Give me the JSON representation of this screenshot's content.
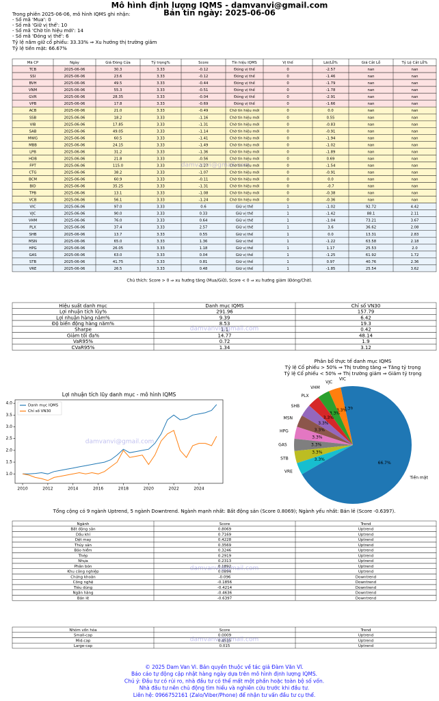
{
  "header": {
    "title": "Mô hình định lượng IQMS - damvanvi@gmail.com",
    "subtitle": "Bản tin ngày: 2025-06-06"
  },
  "summary": [
    "Trong phiên 2025-06-06, mô hình IQMS ghi nhận:",
    "- Số mã 'Mua': 0",
    "- Số mã 'Giữ vị thế': 10",
    "- Số mã 'Chờ tín hiệu mới': 14",
    "- Số mã 'Đóng vị thế': 6",
    "Tỷ lệ nắm giữ cổ phiếu: 33.33%  ⇒ Xu hướng thị trường giảm",
    "Tỷ lệ tiền mặt: 66.67%"
  ],
  "watermark": "damvanvi@gmail.com",
  "signals": {
    "header": [
      "Mã CP",
      "Ngày",
      "Giá Đóng Cửa",
      "Tỷ trọng%",
      "Score",
      "Tín hiệu IQMS",
      "Vị thế",
      "Lãi/Lỗ%",
      "Giá Cắt Lỗ",
      "Tỷ Lệ Cắt Lỗ%"
    ],
    "rows": [
      [
        "TCB",
        "2025-06-06",
        "30.3",
        "3.33",
        "-0.12",
        "Đóng vị thế",
        "0",
        "-2.57",
        "nan",
        "nan"
      ],
      [
        "SSI",
        "2025-06-06",
        "23.6",
        "3.33",
        "-0.12",
        "Đóng vị thế",
        "0",
        "-1.46",
        "nan",
        "nan"
      ],
      [
        "BVH",
        "2025-06-06",
        "49.5",
        "3.33",
        "-0.44",
        "Đóng vị thế",
        "0",
        "-1.79",
        "nan",
        "nan"
      ],
      [
        "VNM",
        "2025-06-06",
        "55.3",
        "3.33",
        "-0.51",
        "Đóng vị thế",
        "0",
        "-1.78",
        "nan",
        "nan"
      ],
      [
        "GVR",
        "2025-06-06",
        "28.35",
        "3.33",
        "-0.04",
        "Đóng vị thế",
        "0",
        "-2.91",
        "nan",
        "nan"
      ],
      [
        "VPB",
        "2025-06-06",
        "17.8",
        "3.33",
        "-0.69",
        "Đóng vị thế",
        "0",
        "-1.66",
        "nan",
        "nan"
      ],
      [
        "ACB",
        "2025-06-06",
        "21.0",
        "3.33",
        "-0.49",
        "Chờ tín hiệu mới",
        "0",
        "0.0",
        "nan",
        "nan"
      ],
      [
        "SSB",
        "2025-06-06",
        "18.2",
        "3.33",
        "-1.16",
        "Chờ tín hiệu mới",
        "0",
        "0.55",
        "nan",
        "nan"
      ],
      [
        "VIB",
        "2025-06-06",
        "17.85",
        "3.33",
        "-1.31",
        "Chờ tín hiệu mới",
        "0",
        "-0.83",
        "nan",
        "nan"
      ],
      [
        "SAB",
        "2025-06-06",
        "49.05",
        "3.33",
        "-1.14",
        "Chờ tín hiệu mới",
        "0",
        "-0.91",
        "nan",
        "nan"
      ],
      [
        "MWG",
        "2025-06-06",
        "60.5",
        "3.33",
        "-1.41",
        "Chờ tín hiệu mới",
        "0",
        "-1.94",
        "nan",
        "nan"
      ],
      [
        "MBB",
        "2025-06-06",
        "24.15",
        "3.33",
        "-1.49",
        "Chờ tín hiệu mới",
        "0",
        "-1.02",
        "nan",
        "nan"
      ],
      [
        "LPB",
        "2025-06-06",
        "31.2",
        "3.33",
        "-1.36",
        "Chờ tín hiệu mới",
        "0",
        "-1.89",
        "nan",
        "nan"
      ],
      [
        "HDB",
        "2025-06-06",
        "21.8",
        "3.33",
        "-0.56",
        "Chờ tín hiệu mới",
        "0",
        "0.69",
        "nan",
        "nan"
      ],
      [
        "FPT",
        "2025-06-06",
        "115.0",
        "3.33",
        "-1.27",
        "Chờ tín hiệu mới",
        "0",
        "-1.54",
        "nan",
        "nan"
      ],
      [
        "CTG",
        "2025-06-06",
        "38.2",
        "3.33",
        "-1.07",
        "Chờ tín hiệu mới",
        "0",
        "-0.91",
        "nan",
        "nan"
      ],
      [
        "BCM",
        "2025-06-06",
        "60.9",
        "3.33",
        "-0.11",
        "Chờ tín hiệu mới",
        "0",
        "0.0",
        "nan",
        "nan"
      ],
      [
        "BID",
        "2025-06-06",
        "35.25",
        "3.33",
        "-1.31",
        "Chờ tín hiệu mới",
        "0",
        "-0.7",
        "nan",
        "nan"
      ],
      [
        "TPB",
        "2025-06-06",
        "13.1",
        "3.33",
        "-1.08",
        "Chờ tín hiệu mới",
        "0",
        "-0.38",
        "nan",
        "nan"
      ],
      [
        "VCB",
        "2025-06-06",
        "56.1",
        "3.33",
        "-1.24",
        "Chờ tín hiệu mới",
        "0",
        "-0.36",
        "nan",
        "nan"
      ],
      [
        "VIC",
        "2025-06-06",
        "97.0",
        "3.33",
        "0.6",
        "Giữ vị thế",
        "1",
        "-1.02",
        "92.72",
        "4.42"
      ],
      [
        "VJC",
        "2025-06-06",
        "90.0",
        "3.33",
        "0.33",
        "Giữ vị thế",
        "1",
        "-1.42",
        "88.1",
        "2.11"
      ],
      [
        "VHM",
        "2025-06-06",
        "76.0",
        "3.33",
        "0.64",
        "Giữ vị thế",
        "1",
        "-1.04",
        "73.21",
        "3.67"
      ],
      [
        "PLX",
        "2025-06-06",
        "37.4",
        "3.33",
        "2.57",
        "Giữ vị thế",
        "1",
        "3.6",
        "36.62",
        "2.08"
      ],
      [
        "SHB",
        "2025-06-06",
        "13.7",
        "3.33",
        "0.55",
        "Giữ vị thế",
        "1",
        "0.0",
        "13.31",
        "2.83"
      ],
      [
        "MSN",
        "2025-06-06",
        "65.0",
        "3.33",
        "1.36",
        "Giữ vị thế",
        "1",
        "-1.22",
        "63.58",
        "2.18"
      ],
      [
        "HPG",
        "2025-06-06",
        "26.05",
        "3.33",
        "1.18",
        "Giữ vị thế",
        "1",
        "1.17",
        "25.53",
        "2.0"
      ],
      [
        "GAS",
        "2025-06-06",
        "63.0",
        "3.33",
        "0.04",
        "Giữ vị thế",
        "1",
        "-1.25",
        "61.92",
        "1.72"
      ],
      [
        "STB",
        "2025-06-06",
        "41.75",
        "3.33",
        "0.81",
        "Giữ vị thế",
        "1",
        "0.97",
        "40.76",
        "2.36"
      ],
      [
        "VRE",
        "2025-06-06",
        "26.5",
        "3.33",
        "0.48",
        "Giữ vị thế",
        "1",
        "-1.85",
        "25.54",
        "3.62"
      ]
    ],
    "row_colors": [
      "#fde2e2",
      "#fde2e2",
      "#fde2e2",
      "#fde2e2",
      "#fde2e2",
      "#fde2e2",
      "#fff7cc",
      "#fff7cc",
      "#fff7cc",
      "#fff7cc",
      "#fff7cc",
      "#fff7cc",
      "#fff7cc",
      "#fff7cc",
      "#fff7cc",
      "#fff7cc",
      "#fff7cc",
      "#fff7cc",
      "#fff7cc",
      "#fff7cc",
      "#eaf3fb",
      "#eaf3fb",
      "#eaf3fb",
      "#eaf3fb",
      "#eaf3fb",
      "#eaf3fb",
      "#eaf3fb",
      "#eaf3fb",
      "#eaf3fb",
      "#eaf3fb"
    ]
  },
  "note": "Chú thích: Score > 0 ⇒ xu hướng tăng (Mua/Giữ), Score < 0 ⇒ xu hướng giảm (Đóng/Chờ).",
  "performance": {
    "header": [
      "Hiệu suất danh mục",
      "Danh mục IQMS",
      "Chỉ số VN30"
    ],
    "rows": [
      [
        "Lợi nhuận tích lũy%",
        "291.96",
        "157.79"
      ],
      [
        "Lợi nhuận hàng năm%",
        "9.39",
        "6.42"
      ],
      [
        "Độ biến động hàng năm%",
        "8.53",
        "19.3"
      ],
      [
        "Sharpe",
        "1.1",
        "0.42"
      ],
      [
        "Giảm tối đa%",
        "14.77",
        "48.14"
      ],
      [
        "VaR95%",
        "0.72",
        "1.9"
      ],
      [
        "CVaR95%",
        "1.34",
        "3.12"
      ]
    ]
  },
  "chart_data": [
    {
      "type": "line",
      "title": "Lợi nhuận tích lũy danh mục - mô hình IQMS",
      "x": [
        2010,
        2010.5,
        2011,
        2011.5,
        2012,
        2012.5,
        2013,
        2013.5,
        2014,
        2014.5,
        2015,
        2015.5,
        2016,
        2016.5,
        2017,
        2017.5,
        2018,
        2018.5,
        2019,
        2019.5,
        2020,
        2020.5,
        2021,
        2021.5,
        2022,
        2022.5,
        2023,
        2023.5,
        2024,
        2024.5,
        2025,
        2025.4
      ],
      "series": [
        {
          "name": "Danh mục IQMS",
          "color": "#1f77b4",
          "values": [
            1.0,
            1.0,
            1.02,
            1.05,
            1.0,
            1.1,
            1.15,
            1.2,
            1.25,
            1.3,
            1.35,
            1.4,
            1.45,
            1.5,
            1.6,
            1.8,
            2.05,
            1.9,
            1.95,
            2.0,
            2.05,
            2.3,
            2.7,
            3.3,
            3.5,
            3.3,
            3.35,
            3.5,
            3.55,
            3.6,
            3.7,
            3.95
          ]
        },
        {
          "name": "Chỉ số VN30",
          "color": "#ff7f0e",
          "values": [
            1.0,
            0.95,
            0.85,
            0.8,
            0.72,
            0.85,
            0.9,
            0.95,
            1.0,
            1.05,
            1.0,
            1.05,
            1.0,
            1.1,
            1.3,
            1.5,
            2.0,
            1.7,
            1.75,
            1.8,
            1.4,
            1.8,
            2.4,
            2.7,
            2.85,
            2.0,
            1.7,
            2.2,
            2.3,
            2.3,
            2.2,
            2.6
          ]
        }
      ],
      "xlim": [
        2009.4,
        2025.9
      ],
      "xticks": [
        2010,
        2012,
        2014,
        2016,
        2018,
        2020,
        2022,
        2024
      ],
      "ylim": [
        0.6,
        4.15
      ],
      "yticks": [
        {
          "value": 1,
          "label": "1.0"
        },
        1.5,
        {
          "value": 2,
          "label": "2.0"
        },
        2.5,
        {
          "value": 3,
          "label": "3.0"
        },
        3.5,
        {
          "value": 4,
          "label": "4.0"
        }
      ],
      "legend": "upper left"
    },
    {
      "type": "pie",
      "title": [
        "Phân bổ thực tế danh mục IQMS",
        "Tỷ lệ Cổ phiếu > 50% ⇒ Thị trường tăng ⇒ Tăng tỷ trọng",
        "Tỷ lệ Cổ phiếu < 50% ⇒ Thị trường giảm ⇒ Giảm tỷ trọng"
      ],
      "categories": [
        "VIC",
        "VJC",
        "VHM",
        "PLX",
        "SHB",
        "MSN",
        "HPG",
        "GAS",
        "STB",
        "VRE",
        "Tiền mặt"
      ],
      "values": [
        3.33,
        3.33,
        3.33,
        3.33,
        3.33,
        3.33,
        3.33,
        3.33,
        3.33,
        3.33,
        66.67
      ],
      "value_labels": [
        "3.3%",
        "3.3%",
        "3.3%",
        "3.3%",
        "3.3%",
        "3.3%",
        "3.3%",
        "3.3%",
        "3.3%",
        "3.3%",
        "66.7%"
      ],
      "colors": [
        "#1f77b4",
        "#ff7f0e",
        "#2ca02c",
        "#d62728",
        "#9467bd",
        "#8c564b",
        "#e377c2",
        "#7f7f7f",
        "#bcbd22",
        "#17becf",
        "#1f77b4"
      ]
    }
  ],
  "sector_summary": "Tổng cộng có 9 ngành Uptrend, 5 ngành Downtrend.  Ngành mạnh nhất: Bất động sản (Score 0.8069);  Ngành yếu nhất: Bán lẻ (Score -0.6397).",
  "sectors": {
    "header": [
      "Ngành",
      "Score",
      "Trend"
    ],
    "rows": [
      [
        "Bất động sản",
        "0.8069",
        "Uptrend"
      ],
      [
        "Dầu khí",
        "0.7169",
        "Uptrend"
      ],
      [
        "Dệt may",
        "0.4228",
        "Uptrend"
      ],
      [
        "Thủy sản",
        "0.3569",
        "Uptrend"
      ],
      [
        "Bảo hiểm",
        "0.3246",
        "Uptrend"
      ],
      [
        "Thép",
        "0.2919",
        "Uptrend"
      ],
      [
        "Nhựa",
        "0.2313",
        "Uptrend"
      ],
      [
        "Phân bón",
        "0.1892",
        "Uptrend"
      ],
      [
        "Khu công nghiệp",
        "0.0894",
        "Uptrend"
      ],
      [
        "Chứng khoán",
        "-0.096",
        "Downtrend"
      ],
      [
        "Công nghệ",
        "-0.1856",
        "Downtrend"
      ],
      [
        "Tiêu dùng",
        "-0.4214",
        "Downtrend"
      ],
      [
        "Ngân hàng",
        "-0.4636",
        "Downtrend"
      ],
      [
        "Bán lẻ",
        "-0.6397",
        "Downtrend"
      ]
    ]
  },
  "caps": {
    "header": [
      "Nhóm vốn hóa",
      "Score",
      "Trend"
    ],
    "rows": [
      [
        "Small-cap",
        "0.0009",
        "Uptrend"
      ],
      [
        "Mid-cap",
        "0.4535",
        "Uptrend"
      ],
      [
        "Large-cap",
        "0.015",
        "Uptrend"
      ]
    ]
  },
  "footer": [
    "© 2025 Dam Van Vi. Bản quyền thuộc về tác giả Đàm Văn Vĩ.",
    "Báo cáo tự động cập nhật hàng ngày dựa trên mô hình định lượng IQMS.",
    "Chú ý: Đầu tư có rủi ro, nhà đầu tư có thể mất một phần hoặc toàn bộ số vốn.",
    "Nhà đầu tư nên chủ động tìm hiểu và nghiên cứu trước khi đầu tư.",
    "Liên hệ: 0966752161 (Zalo/Viber/Phone) để nhận tư vấn đầu tư cụ thể."
  ]
}
